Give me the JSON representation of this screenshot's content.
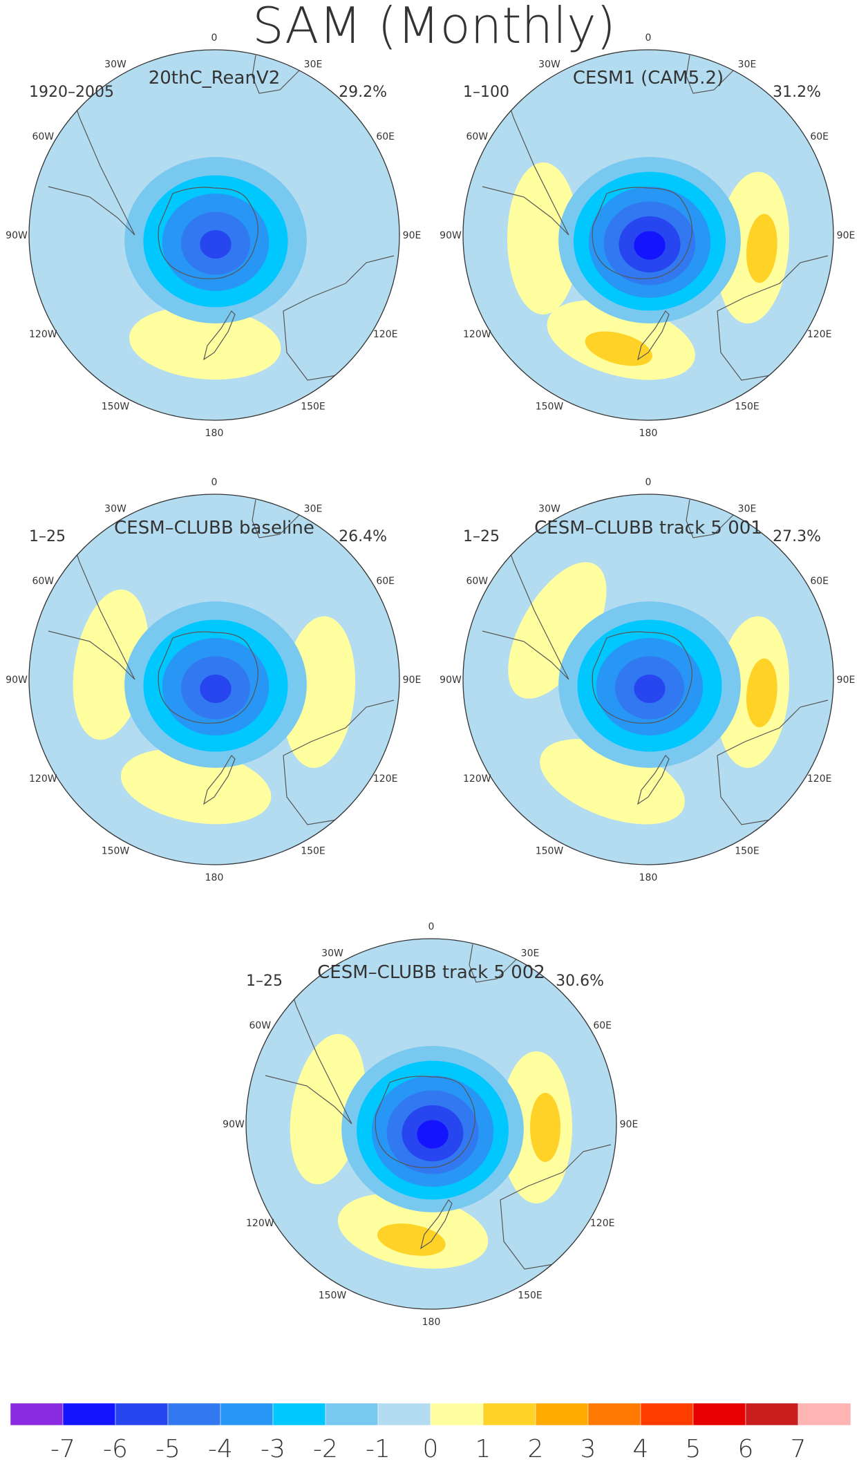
{
  "title": "SAM (Monthly)",
  "chart_data": {
    "type": "heatmap",
    "projection": "south-polar-stereographic",
    "title": "SAM (Monthly)",
    "longitude_labels": [
      "0",
      "30E",
      "60E",
      "90E",
      "120E",
      "150E",
      "180",
      "150W",
      "120W",
      "90W",
      "60W",
      "30W"
    ],
    "colorbar": {
      "ticks": [
        "-7",
        "-6",
        "-5",
        "-4",
        "-3",
        "-2",
        "-1",
        "0",
        "1",
        "2",
        "3",
        "4",
        "5",
        "6",
        "7"
      ],
      "colors": [
        "#8a2be2",
        "#1414ff",
        "#2846f0",
        "#3278f0",
        "#2896f5",
        "#00c8ff",
        "#78c8f0",
        "#b4dcf0",
        "#ffffa0",
        "#ffd228",
        "#ffaa00",
        "#ff7800",
        "#ff3c00",
        "#e60000",
        "#c81e1e",
        "#ffb4b4"
      ]
    },
    "panels": [
      {
        "title": "20thC_ReanV2",
        "period": "1920–2005",
        "variance": "29.2%",
        "center_min": -5,
        "ring_max": 1,
        "pos_lobes": [
          {
            "lon": 185,
            "val": 1
          }
        ]
      },
      {
        "title": "CESM1 (CAM5.2)",
        "period": "1–100",
        "variance": "31.2%",
        "center_min": -6,
        "ring_max": 2,
        "pos_lobes": [
          {
            "lon": 95,
            "val": 2
          },
          {
            "lon": 195,
            "val": 2
          },
          {
            "lon": 270,
            "val": 1
          }
        ]
      },
      {
        "title": "CESM–CLUBB baseline",
        "period": "1–25",
        "variance": "26.4%",
        "center_min": -5,
        "ring_max": 1,
        "pos_lobes": [
          {
            "lon": 95,
            "val": 1
          },
          {
            "lon": 190,
            "val": 1
          },
          {
            "lon": 280,
            "val": 1
          }
        ]
      },
      {
        "title": "CESM–CLUBB track 5 001",
        "period": "1–25",
        "variance": "27.3%",
        "center_min": -5,
        "ring_max": 2,
        "pos_lobes": [
          {
            "lon": 95,
            "val": 2
          },
          {
            "lon": 200,
            "val": 1
          },
          {
            "lon": 300,
            "val": 1
          }
        ]
      },
      {
        "title": "CESM–CLUBB track 5 002",
        "period": "1–25",
        "variance": "30.6%",
        "center_min": -6,
        "ring_max": 2,
        "pos_lobes": [
          {
            "lon": 90,
            "val": 2
          },
          {
            "lon": 190,
            "val": 2
          },
          {
            "lon": 280,
            "val": 1
          }
        ]
      }
    ]
  }
}
